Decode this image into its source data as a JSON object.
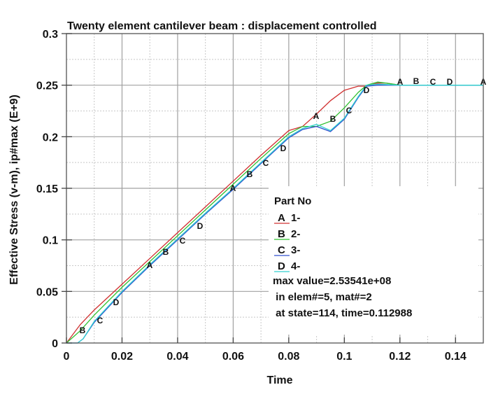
{
  "chart_data": {
    "type": "line",
    "title": "Twenty element cantilever beam : displacement controlled",
    "xlabel": "Time",
    "ylabel": "Effective Stress (v-m), ip#max (E+9)",
    "xlim": [
      0,
      0.15
    ],
    "ylim": [
      0,
      0.3
    ],
    "x_ticks": [
      "0",
      "0.02",
      "0.04",
      "0.06",
      "0.08",
      "0.1",
      "0.12",
      "0.14"
    ],
    "y_ticks": [
      "0",
      "0.05",
      "0.1",
      "0.15",
      "0.2",
      "0.25",
      "0.3"
    ],
    "grid": true,
    "legend_position": "inside-lower-right",
    "legend": {
      "title": "Part No",
      "entries": [
        {
          "marker": "A",
          "label": "1-",
          "color": "#d03030"
        },
        {
          "marker": "B",
          "label": "2-",
          "color": "#30c030"
        },
        {
          "marker": "C",
          "label": "3-",
          "color": "#3050d0"
        },
        {
          "marker": "D",
          "label": "4-",
          "color": "#30d0d0"
        }
      ],
      "notes": [
        "max value=2.53541e+08",
        " in elem#=5, mat#=2",
        " at state=114, time=0.112988"
      ]
    },
    "series": [
      {
        "name": "A 1-",
        "color": "#d03030",
        "x": [
          0,
          0.005,
          0.01,
          0.02,
          0.03,
          0.04,
          0.05,
          0.06,
          0.07,
          0.08,
          0.085,
          0.09,
          0.095,
          0.1,
          0.105,
          0.108,
          0.112,
          0.115,
          0.12,
          0.13,
          0.14,
          0.15
        ],
        "y": [
          0,
          0.018,
          0.032,
          0.057,
          0.082,
          0.107,
          0.132,
          0.157,
          0.182,
          0.206,
          0.21,
          0.222,
          0.235,
          0.245,
          0.249,
          0.249,
          0.252,
          0.252,
          0.25,
          0.25,
          0.25,
          0.25
        ]
      },
      {
        "name": "B 2-",
        "color": "#30c030",
        "x": [
          0,
          0.005,
          0.01,
          0.02,
          0.03,
          0.04,
          0.05,
          0.06,
          0.07,
          0.08,
          0.085,
          0.09,
          0.095,
          0.1,
          0.105,
          0.108,
          0.112,
          0.115,
          0.12,
          0.13,
          0.14,
          0.15
        ],
        "y": [
          0,
          0.012,
          0.027,
          0.054,
          0.079,
          0.104,
          0.129,
          0.154,
          0.179,
          0.203,
          0.21,
          0.21,
          0.215,
          0.228,
          0.243,
          0.25,
          0.253,
          0.252,
          0.25,
          0.25,
          0.25,
          0.25
        ]
      },
      {
        "name": "C 3-",
        "color": "#3050d0",
        "x": [
          0,
          0.004,
          0.006,
          0.01,
          0.02,
          0.03,
          0.04,
          0.05,
          0.06,
          0.07,
          0.08,
          0.085,
          0.09,
          0.095,
          0.1,
          0.105,
          0.108,
          0.112,
          0.12,
          0.13,
          0.14,
          0.15
        ],
        "y": [
          0,
          0,
          0.004,
          0.02,
          0.049,
          0.075,
          0.1,
          0.125,
          0.149,
          0.174,
          0.199,
          0.207,
          0.21,
          0.205,
          0.217,
          0.238,
          0.249,
          0.25,
          0.25,
          0.25,
          0.25,
          0.25
        ]
      },
      {
        "name": "D 4-",
        "color": "#30d0d0",
        "x": [
          0,
          0.004,
          0.006,
          0.01,
          0.02,
          0.03,
          0.04,
          0.05,
          0.06,
          0.07,
          0.08,
          0.085,
          0.09,
          0.095,
          0.1,
          0.105,
          0.108,
          0.112,
          0.12,
          0.13,
          0.14,
          0.15
        ],
        "y": [
          0,
          0,
          0.004,
          0.021,
          0.05,
          0.076,
          0.101,
          0.126,
          0.15,
          0.175,
          0.2,
          0.208,
          0.212,
          0.206,
          0.218,
          0.239,
          0.25,
          0.251,
          0.25,
          0.25,
          0.25,
          0.25
        ]
      }
    ]
  }
}
